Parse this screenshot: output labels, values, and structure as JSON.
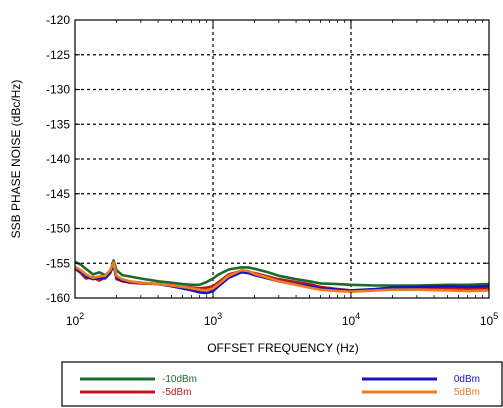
{
  "chart_data": {
    "type": "line",
    "title": "",
    "xlabel": "OFFSET FREQUENCY (Hz)",
    "ylabel": "SSB PHASE NOISE (dBc/Hz)",
    "x_scale": "log",
    "xlim": [
      100,
      100000
    ],
    "ylim": [
      -160,
      -120
    ],
    "x_ticks": [
      {
        "value": 100,
        "base": "10",
        "exp": "2"
      },
      {
        "value": 1000,
        "base": "10",
        "exp": "3"
      },
      {
        "value": 10000,
        "base": "10",
        "exp": "4"
      },
      {
        "value": 100000,
        "base": "10",
        "exp": "5"
      }
    ],
    "y_ticks": [
      "-120",
      "-125",
      "-130",
      "-135",
      "-140",
      "-145",
      "-150",
      "-155",
      "-160"
    ],
    "y_tick_values": [
      -120,
      -125,
      -130,
      -135,
      -140,
      -145,
      -150,
      -155,
      -160
    ],
    "grid": true,
    "legend_position": "bottom",
    "series": [
      {
        "name": "-10dBm",
        "color": "#1a6b2a",
        "x": [
          100,
          110,
          120,
          135,
          150,
          165,
          180,
          190,
          200,
          220,
          250,
          300,
          400,
          500,
          600,
          700,
          800,
          900,
          1000,
          1100,
          1300,
          1600,
          1800,
          2000,
          2500,
          3000,
          4000,
          5000,
          6000,
          8000,
          10000,
          15000,
          20000,
          30000,
          50000,
          70000,
          100000
        ],
        "y": [
          -154.8,
          -155.2,
          -155.8,
          -156.6,
          -156.3,
          -156.7,
          -156.2,
          -154.6,
          -156.0,
          -156.7,
          -156.9,
          -157.2,
          -157.6,
          -157.8,
          -158.0,
          -158.1,
          -158.1,
          -157.7,
          -157.2,
          -156.6,
          -155.9,
          -155.6,
          -155.6,
          -155.8,
          -156.3,
          -156.8,
          -157.3,
          -157.6,
          -157.9,
          -158.0,
          -158.1,
          -158.2,
          -158.2,
          -158.2,
          -158.1,
          -158.1,
          -158.0
        ]
      },
      {
        "name": "-5dBm",
        "color": "#c0141e",
        "x": [
          100,
          110,
          120,
          135,
          150,
          165,
          180,
          190,
          200,
          220,
          250,
          300,
          400,
          500,
          600,
          700,
          800,
          900,
          1000,
          1100,
          1300,
          1600,
          1800,
          2000,
          2500,
          3000,
          4000,
          5000,
          6000,
          8000,
          10000,
          15000,
          20000,
          30000,
          50000,
          70000,
          100000
        ],
        "y": [
          -155.8,
          -156.4,
          -157.2,
          -157.0,
          -157.5,
          -157.0,
          -156.2,
          -155.0,
          -157.3,
          -157.6,
          -157.8,
          -157.9,
          -158.0,
          -158.2,
          -158.4,
          -158.5,
          -158.6,
          -158.5,
          -158.3,
          -157.7,
          -156.6,
          -156.1,
          -156.2,
          -156.4,
          -156.9,
          -157.3,
          -157.7,
          -158.0,
          -158.4,
          -158.7,
          -158.9,
          -158.8,
          -158.7,
          -158.6,
          -158.6,
          -158.7,
          -158.6
        ]
      },
      {
        "name": "0dBm",
        "color": "#1414c0",
        "x": [
          100,
          110,
          120,
          135,
          150,
          165,
          180,
          190,
          200,
          220,
          250,
          300,
          400,
          500,
          600,
          700,
          800,
          900,
          1000,
          1100,
          1300,
          1600,
          1800,
          2000,
          2500,
          3000,
          4000,
          5000,
          6000,
          8000,
          10000,
          15000,
          20000,
          30000,
          50000,
          70000,
          100000
        ],
        "y": [
          -155.6,
          -156.2,
          -156.9,
          -157.3,
          -157.1,
          -157.2,
          -156.4,
          -155.3,
          -157.0,
          -157.5,
          -157.7,
          -157.8,
          -158.0,
          -158.3,
          -158.6,
          -158.9,
          -159.2,
          -159.3,
          -159.0,
          -158.3,
          -157.1,
          -156.3,
          -156.4,
          -156.7,
          -157.2,
          -157.6,
          -158.0,
          -158.3,
          -158.6,
          -158.8,
          -158.9,
          -158.7,
          -158.5,
          -158.4,
          -158.3,
          -158.4,
          -158.3
        ]
      },
      {
        "name": "5dBm",
        "color": "#f07a1e",
        "x": [
          100,
          110,
          120,
          135,
          150,
          165,
          180,
          190,
          200,
          220,
          250,
          300,
          400,
          500,
          600,
          700,
          800,
          900,
          1000,
          1100,
          1300,
          1600,
          1800,
          2000,
          2500,
          3000,
          4000,
          5000,
          6000,
          8000,
          10000,
          15000,
          20000,
          30000,
          50000,
          70000,
          100000
        ],
        "y": [
          -155.5,
          -156.0,
          -156.6,
          -157.1,
          -156.9,
          -156.8,
          -156.0,
          -154.9,
          -156.8,
          -157.3,
          -157.6,
          -157.8,
          -158.0,
          -158.2,
          -158.4,
          -158.6,
          -158.8,
          -158.9,
          -158.6,
          -158.0,
          -156.8,
          -156.0,
          -156.1,
          -156.5,
          -157.1,
          -157.6,
          -158.1,
          -158.5,
          -158.8,
          -159.0,
          -159.1,
          -158.9,
          -158.8,
          -158.8,
          -158.9,
          -159.0,
          -158.9
        ]
      }
    ]
  }
}
